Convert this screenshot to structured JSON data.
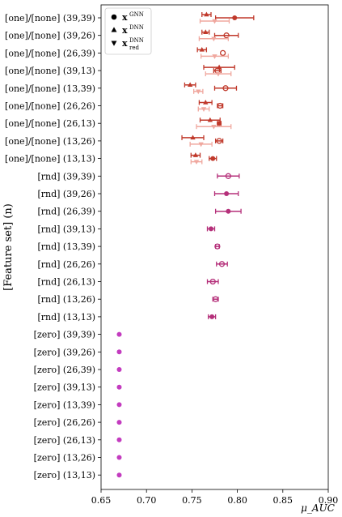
{
  "chart_data": {
    "type": "scatter",
    "ylabel": "[Feature set] (n)",
    "xlabel": "μ_AUC",
    "xlim": [
      0.65,
      0.9
    ],
    "xticks": [
      0.65,
      0.7,
      0.75,
      0.8,
      0.85,
      0.9
    ],
    "xtick_labels": [
      "0.65",
      "0.70",
      "0.75",
      "0.80",
      "0.85",
      "0.90"
    ],
    "categories": [
      "[one]/[none] (39,39)",
      "[one]/[none] (39,26)",
      "[one]/[none] (26,39)",
      "[one]/[none] (39,13)",
      "[one]/[none] (13,39)",
      "[one]/[none] (26,26)",
      "[one]/[none] (26,13)",
      "[one]/[none] (13,26)",
      "[one]/[none] (13,13)",
      "[rnd] (39,39)",
      "[rnd] (39,26)",
      "[rnd] (26,39)",
      "[rnd] (39,13)",
      "[rnd] (13,39)",
      "[rnd] (26,26)",
      "[rnd] (26,13)",
      "[rnd] (13,26)",
      "[rnd] (13,13)",
      "[zero] (39,39)",
      "[zero] (39,26)",
      "[zero] (26,39)",
      "[zero] (39,13)",
      "[zero] (13,39)",
      "[zero] (26,26)",
      "[zero] (26,13)",
      "[zero] (13,26)",
      "[zero] (13,13)"
    ],
    "legend": {
      "placement": "top-left",
      "entries": [
        {
          "base": "x",
          "sup": "GNN",
          "sub": "",
          "marker": "circle"
        },
        {
          "base": "x",
          "sup": "DNN",
          "sub": "",
          "marker": "triangle-up"
        },
        {
          "base": "x",
          "sup": "DNN",
          "sub": "red",
          "marker": "triangle-down"
        }
      ]
    },
    "series": [
      {
        "legend_index": 0,
        "marker": "circle",
        "points": [
          {
            "y": 0,
            "x": 0.797,
            "err": 0.021,
            "color": "#c0392b",
            "filled": true
          },
          {
            "y": 1,
            "x": 0.788,
            "err": 0.013,
            "color": "#c0392b",
            "filled": false
          },
          {
            "y": 2,
            "x": 0.784,
            "err": 0.0,
            "color": "#c0392b",
            "filled": false
          },
          {
            "y": 3,
            "x": 0.778,
            "err": 0.004,
            "color": "#c0392b",
            "filled": false
          },
          {
            "y": 4,
            "x": 0.787,
            "err": 0.012,
            "color": "#c0392b",
            "filled": false
          },
          {
            "y": 5,
            "x": 0.781,
            "err": 0.003,
            "color": "#c0392b",
            "filled": false
          },
          {
            "y": 6,
            "x": 0.78,
            "err": 0.002,
            "color": "#c0392b",
            "filled": true
          },
          {
            "y": 7,
            "x": 0.78,
            "err": 0.004,
            "color": "#c0392b",
            "filled": false
          },
          {
            "y": 8,
            "x": 0.773,
            "err": 0.004,
            "color": "#c0392b",
            "filled": true
          },
          {
            "y": 9,
            "x": 0.79,
            "err": 0.012,
            "color": "#b5307a",
            "filled": false
          },
          {
            "y": 10,
            "x": 0.788,
            "err": 0.013,
            "color": "#b5307a",
            "filled": true
          },
          {
            "y": 11,
            "x": 0.79,
            "err": 0.014,
            "color": "#b5307a",
            "filled": true
          },
          {
            "y": 12,
            "x": 0.771,
            "err": 0.004,
            "color": "#b5307a",
            "filled": true
          },
          {
            "y": 13,
            "x": 0.778,
            "err": 0.002,
            "color": "#b5307a",
            "filled": false
          },
          {
            "y": 14,
            "x": 0.783,
            "err": 0.006,
            "color": "#b5307a",
            "filled": false
          },
          {
            "y": 15,
            "x": 0.773,
            "err": 0.006,
            "color": "#b5307a",
            "filled": false
          },
          {
            "y": 16,
            "x": 0.776,
            "err": 0.003,
            "color": "#b5307a",
            "filled": false
          },
          {
            "y": 17,
            "x": 0.772,
            "err": 0.004,
            "color": "#b5307a",
            "filled": true
          },
          {
            "y": 18,
            "x": 0.67,
            "err": 0.0,
            "color": "#c33bbf",
            "filled": true
          },
          {
            "y": 19,
            "x": 0.67,
            "err": 0.0,
            "color": "#c33bbf",
            "filled": true
          },
          {
            "y": 20,
            "x": 0.67,
            "err": 0.0,
            "color": "#c33bbf",
            "filled": true
          },
          {
            "y": 21,
            "x": 0.67,
            "err": 0.0,
            "color": "#c33bbf",
            "filled": true
          },
          {
            "y": 22,
            "x": 0.67,
            "err": 0.0,
            "color": "#c33bbf",
            "filled": true
          },
          {
            "y": 23,
            "x": 0.67,
            "err": 0.0,
            "color": "#c33bbf",
            "filled": true
          },
          {
            "y": 24,
            "x": 0.67,
            "err": 0.0,
            "color": "#c33bbf",
            "filled": true
          },
          {
            "y": 25,
            "x": 0.67,
            "err": 0.0,
            "color": "#c33bbf",
            "filled": true
          },
          {
            "y": 26,
            "x": 0.67,
            "err": 0.0,
            "color": "#c33bbf",
            "filled": true
          }
        ]
      },
      {
        "legend_index": 1,
        "marker": "triangle-up",
        "points": [
          {
            "y": 0,
            "x": 0.766,
            "err": 0.005,
            "color": "#c0392b",
            "filled": true
          },
          {
            "y": 1,
            "x": 0.765,
            "err": 0.004,
            "color": "#c0392b",
            "filled": true
          },
          {
            "y": 2,
            "x": 0.761,
            "err": 0.005,
            "color": "#c0392b",
            "filled": true
          },
          {
            "y": 3,
            "x": 0.78,
            "err": 0.017,
            "color": "#c0392b",
            "filled": true
          },
          {
            "y": 4,
            "x": 0.748,
            "err": 0.006,
            "color": "#c0392b",
            "filled": true
          },
          {
            "y": 5,
            "x": 0.765,
            "err": 0.007,
            "color": "#c0392b",
            "filled": true
          },
          {
            "y": 6,
            "x": 0.77,
            "err": 0.011,
            "color": "#c0392b",
            "filled": true
          },
          {
            "y": 7,
            "x": 0.751,
            "err": 0.012,
            "color": "#c0392b",
            "filled": true
          },
          {
            "y": 8,
            "x": 0.754,
            "err": 0.005,
            "color": "#c0392b",
            "filled": true
          }
        ]
      },
      {
        "legend_index": 2,
        "marker": "triangle-down",
        "points": [
          {
            "y": 0,
            "x": 0.775,
            "err": 0.016,
            "color": "#f0a89f",
            "filled": true
          },
          {
            "y": 1,
            "x": 0.774,
            "err": 0.016,
            "color": "#f0a89f",
            "filled": true
          },
          {
            "y": 2,
            "x": 0.775,
            "err": 0.015,
            "color": "#f0a89f",
            "filled": true
          },
          {
            "y": 3,
            "x": 0.779,
            "err": 0.014,
            "color": "#f0a89f",
            "filled": true
          },
          {
            "y": 4,
            "x": 0.757,
            "err": 0.005,
            "color": "#f0a89f",
            "filled": true
          },
          {
            "y": 5,
            "x": 0.763,
            "err": 0.006,
            "color": "#f0a89f",
            "filled": true
          },
          {
            "y": 6,
            "x": 0.774,
            "err": 0.019,
            "color": "#f0a89f",
            "filled": true
          },
          {
            "y": 7,
            "x": 0.76,
            "err": 0.012,
            "color": "#f0a89f",
            "filled": true
          },
          {
            "y": 8,
            "x": 0.755,
            "err": 0.006,
            "color": "#f0a89f",
            "filled": true
          }
        ]
      }
    ]
  }
}
